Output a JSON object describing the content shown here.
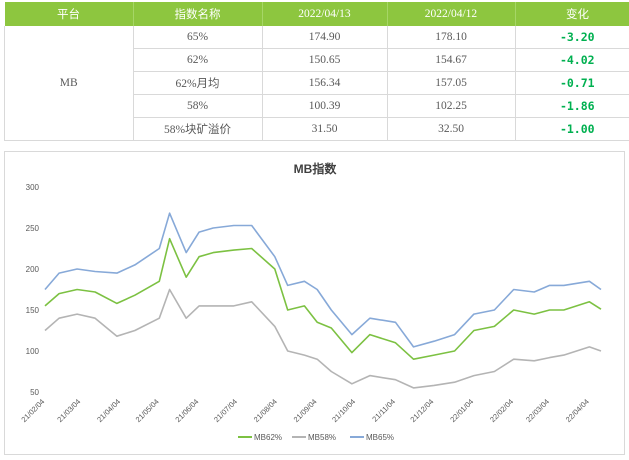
{
  "table": {
    "headers": [
      "平台",
      "指数名称",
      "2022/04/13",
      "2022/04/12",
      "变化"
    ],
    "platform": "MB",
    "rows": [
      {
        "name": "65%",
        "v1": "174.90",
        "v2": "178.10",
        "change": "-3.20"
      },
      {
        "name": "62%",
        "v1": "150.65",
        "v2": "154.67",
        "change": "-4.02"
      },
      {
        "name": "62%月均",
        "v1": "156.34",
        "v2": "157.05",
        "change": "-0.71"
      },
      {
        "name": "58%",
        "v1": "100.39",
        "v2": "102.25",
        "change": "-1.86"
      },
      {
        "name": "58%块矿溢价",
        "v1": "31.50",
        "v2": "32.50",
        "change": "-1.00"
      }
    ]
  },
  "chart_data": {
    "type": "line",
    "title": "MB指数",
    "ylim": [
      50,
      300
    ],
    "yticks": [
      50,
      100,
      150,
      200,
      250,
      300
    ],
    "grid": false,
    "legend": "bottom",
    "x_ticks": [
      "21/02/04",
      "21/03/04",
      "21/04/04",
      "21/05/04",
      "21/06/04",
      "21/07/04",
      "21/08/04",
      "21/09/04",
      "21/10/04",
      "21/11/04",
      "21/12/04",
      "22/01/04",
      "22/02/04",
      "22/03/04",
      "22/04/04"
    ],
    "x": [
      "21/02/04",
      "21/02/15",
      "21/03/01",
      "21/03/15",
      "21/04/01",
      "21/04/15",
      "21/05/04",
      "21/05/12",
      "21/05/25",
      "21/06/04",
      "21/06/15",
      "21/07/01",
      "21/07/15",
      "21/08/02",
      "21/08/12",
      "21/08/25",
      "21/09/04",
      "21/09/15",
      "21/10/01",
      "21/10/15",
      "21/11/04",
      "21/11/18",
      "21/12/04",
      "21/12/20",
      "22/01/04",
      "22/01/20",
      "22/02/04",
      "22/02/20",
      "22/03/04",
      "22/03/15",
      "22/04/04",
      "22/04/13"
    ],
    "series": [
      {
        "name": "MB62%",
        "color": "#7cc142",
        "values": [
          155,
          170,
          175,
          172,
          158,
          168,
          185,
          237,
          190,
          215,
          220,
          223,
          225,
          200,
          150,
          155,
          135,
          128,
          98,
          120,
          110,
          90,
          95,
          100,
          125,
          130,
          150,
          145,
          150,
          150,
          160,
          151
        ]
      },
      {
        "name": "MB58%",
        "color": "#b4b4b4",
        "values": [
          125,
          140,
          145,
          140,
          118,
          125,
          140,
          175,
          140,
          155,
          155,
          155,
          160,
          130,
          100,
          95,
          90,
          75,
          60,
          70,
          65,
          55,
          58,
          62,
          70,
          75,
          90,
          88,
          92,
          95,
          105,
          100
        ]
      },
      {
        "name": "MB65%",
        "color": "#87a9d8",
        "values": [
          175,
          195,
          200,
          197,
          195,
          205,
          225,
          268,
          220,
          245,
          250,
          253,
          253,
          215,
          180,
          185,
          175,
          150,
          120,
          140,
          135,
          105,
          112,
          120,
          145,
          150,
          175,
          172,
          180,
          180,
          185,
          175
        ]
      }
    ]
  }
}
